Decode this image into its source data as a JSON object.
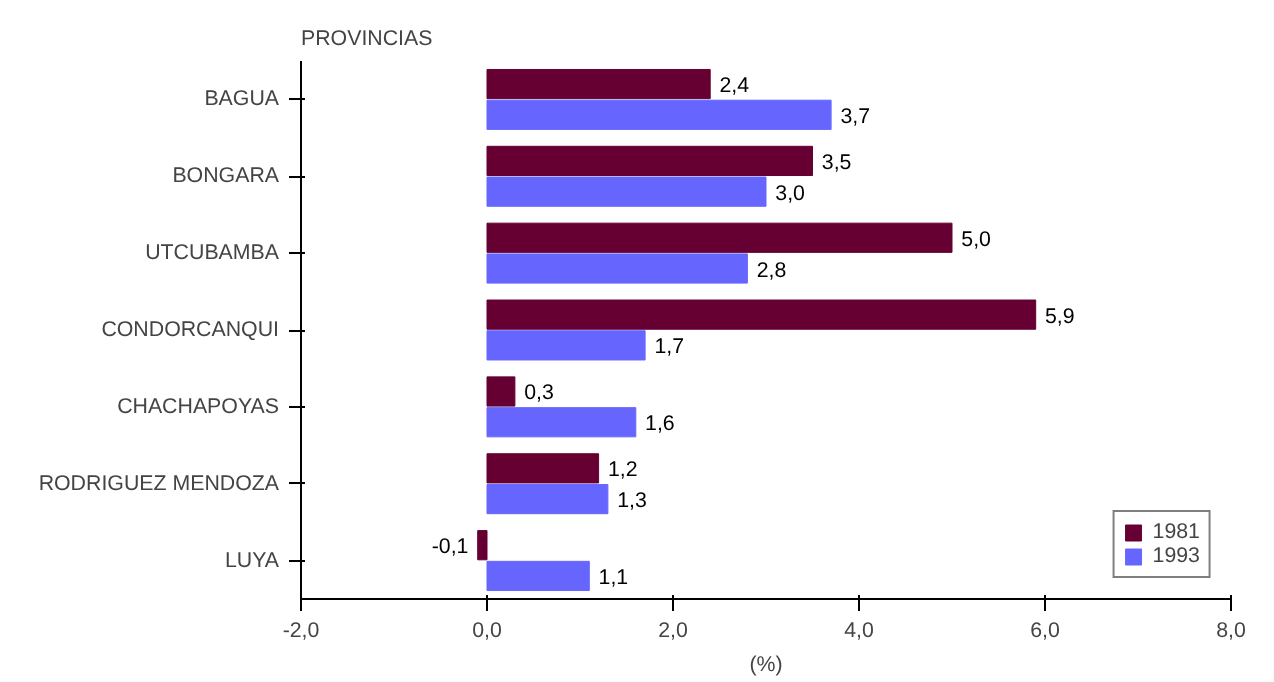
{
  "chart_data": {
    "type": "bar",
    "orientation": "horizontal",
    "ylabel": "PROVINCIAS",
    "xlabel": "(%)",
    "categories": [
      "BAGUA",
      "BONGARA",
      "UTCUBAMBA",
      "CONDORCANQUI",
      "CHACHAPOYAS",
      "RODRIGUEZ MENDOZA",
      "LUYA"
    ],
    "series": [
      {
        "name": "1981",
        "color": "#660033",
        "values": [
          2.4,
          3.5,
          5.0,
          5.9,
          0.3,
          1.2,
          -0.1
        ],
        "value_labels": [
          "2,4",
          "3,5",
          "5,0",
          "5,9",
          "0,3",
          "1,2",
          "-0,1"
        ]
      },
      {
        "name": "1993",
        "color": "#6666ff",
        "values": [
          3.7,
          3.0,
          2.8,
          1.7,
          1.6,
          1.3,
          1.1
        ],
        "value_labels": [
          "3,7",
          "3,0",
          "2,8",
          "1,7",
          "1,6",
          "1,3",
          "1,1"
        ]
      }
    ],
    "xlim": [
      -2,
      8
    ],
    "xticks": [
      {
        "value": -2,
        "label": "-2,0"
      },
      {
        "value": 0,
        "label": "0,0"
      },
      {
        "value": 2,
        "label": "2,0"
      },
      {
        "value": 4,
        "label": "4,0"
      },
      {
        "value": 6,
        "label": "6,0"
      },
      {
        "value": 8,
        "label": "8,0"
      }
    ],
    "legend": "bottom right",
    "grid": false
  }
}
